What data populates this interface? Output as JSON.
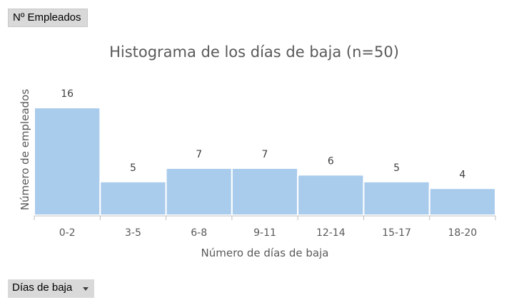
{
  "pivot_fields": {
    "measure_label": "Nº Empleados",
    "axis_label": "Días de baja"
  },
  "colors": {
    "bar_fill": "#a9cbec",
    "bar_stroke": "#ffffff",
    "axis_line": "#bfbfbf"
  },
  "chart_data": {
    "type": "bar",
    "title": "Histograma de los días de baja (n=50)",
    "xlabel": "Número de días de baja",
    "ylabel": "Número de empleados",
    "categories": [
      "0-2",
      "3-5",
      "6-8",
      "9-11",
      "12-14",
      "15-17",
      "18-20"
    ],
    "values": [
      16,
      5,
      7,
      7,
      6,
      5,
      4
    ],
    "ylim": [
      0,
      16
    ],
    "grid": false,
    "legend": "none",
    "data_labels": true
  }
}
